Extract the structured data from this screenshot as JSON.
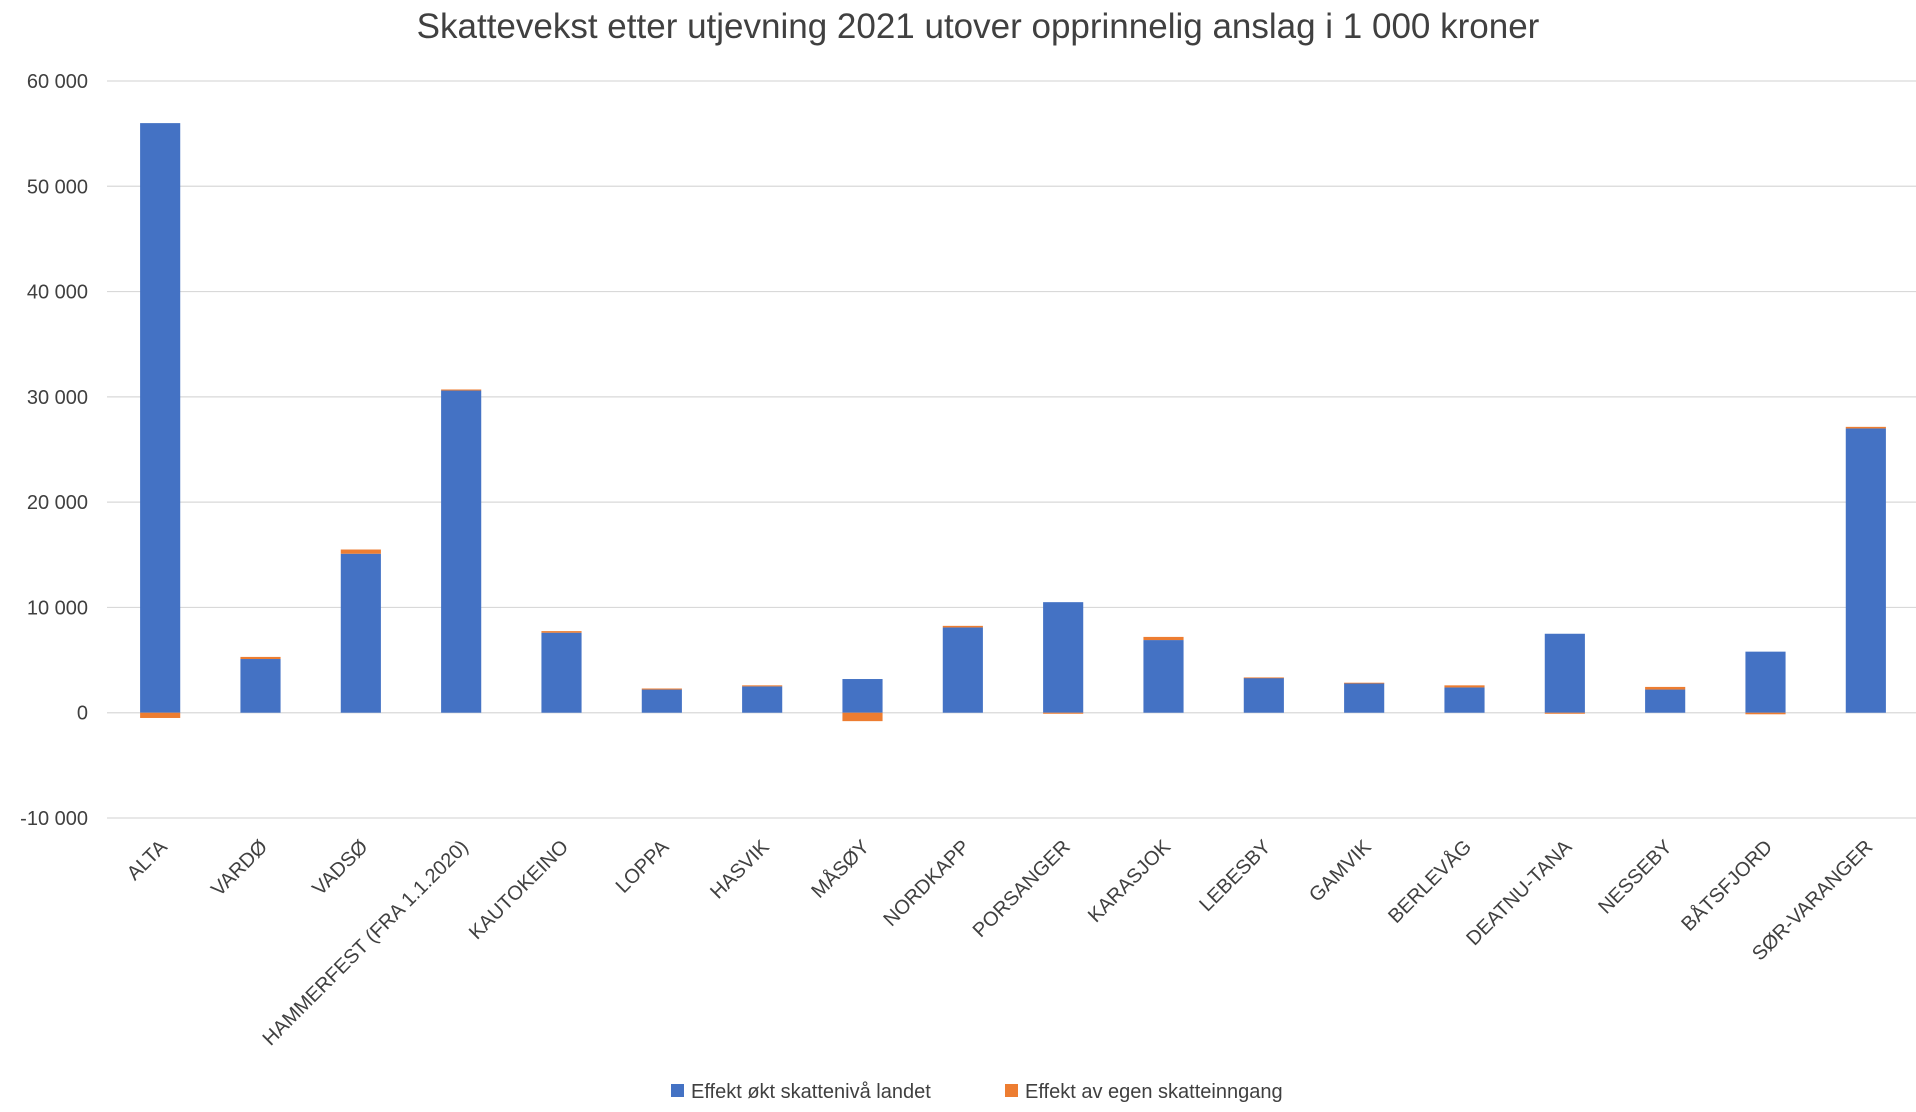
{
  "chart_data": {
    "type": "bar",
    "stacked": true,
    "title": "Skattevekst etter utjevning 2021 utover opprinnelig anslag i 1 000 kroner",
    "categories": [
      "ALTA",
      "VARDØ",
      "VADSØ",
      "HAMMERFEST (FRA 1.1.2020)",
      "KAUTOKEINO",
      "LOPPA",
      "HASVIK",
      "MÅSØY",
      "NORDKAPP",
      "PORSANGER",
      "KARASJOK",
      "LEBESBY",
      "GAMVIK",
      "BERLEVÅG",
      "DEATNU-TANA",
      "NESSEBY",
      "BÅTSFJORD",
      "SØR-VARANGER"
    ],
    "series": [
      {
        "name": "Effekt økt skattenivå landet",
        "color": "#4472c4",
        "values": [
          56000,
          5100,
          15100,
          30600,
          7600,
          2200,
          2500,
          3200,
          8100,
          10500,
          6900,
          3300,
          2800,
          2400,
          7500,
          2200,
          5800,
          27000
        ]
      },
      {
        "name": "Effekt av egen skatteinngang",
        "color": "#ed7d31",
        "values": [
          -500,
          200,
          400,
          100,
          150,
          100,
          100,
          -800,
          150,
          -100,
          300,
          50,
          50,
          200,
          -100,
          250,
          -150,
          150
        ]
      }
    ],
    "ylim": [
      -10000,
      60000
    ],
    "yticks": [
      -10000,
      0,
      10000,
      20000,
      30000,
      40000,
      50000,
      60000
    ],
    "ytick_labels": [
      "-10 000",
      "0",
      "10 000",
      "20 000",
      "30 000",
      "40 000",
      "50 000",
      "60 000"
    ],
    "grid": true,
    "legend_position": "bottom",
    "xlabel": "",
    "ylabel": ""
  }
}
